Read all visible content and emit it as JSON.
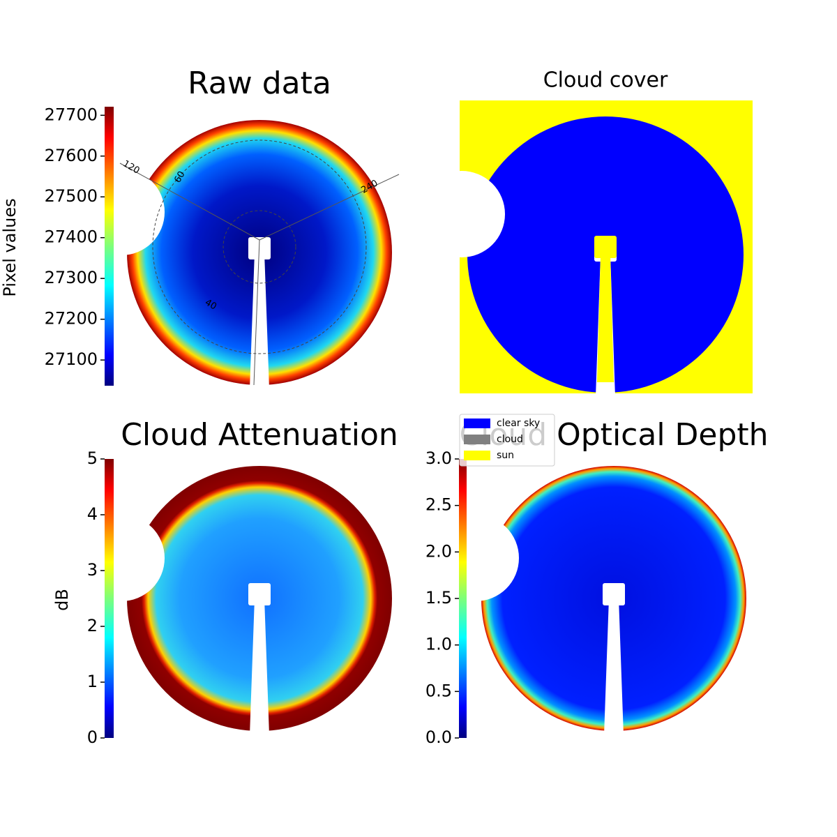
{
  "chart_data": [
    {
      "type": "image",
      "title": "Raw data",
      "colorbar_label": "Pixel values",
      "colormap": "jet",
      "ylim": [
        27037,
        27721
      ],
      "yticks": [
        27100,
        27200,
        27300,
        27400,
        27500,
        27600,
        27700
      ],
      "annotations": [
        "120",
        "60",
        "240",
        "40"
      ]
    },
    {
      "type": "image",
      "title": "Cloud cover",
      "legend": [
        {
          "name": "clear sky",
          "color": "#0000ff"
        },
        {
          "name": "cloud",
          "color": "#808080"
        },
        {
          "name": "sun",
          "color": "#ffff00"
        }
      ]
    },
    {
      "type": "image",
      "title": "Cloud Attenuation",
      "colorbar_label": "dB",
      "colormap": "jet",
      "ylim": [
        0,
        5
      ],
      "yticks": [
        0,
        1,
        2,
        3,
        4,
        5
      ]
    },
    {
      "type": "image",
      "title": "Cloud Optical Depth",
      "colormap": "jet",
      "ylim": [
        0,
        3
      ],
      "yticks": [
        {
          "value": 0,
          "label": "0.0"
        },
        {
          "value": 0.5,
          "label": "0.5"
        },
        {
          "value": 1,
          "label": "1.0"
        },
        {
          "value": 1.5,
          "label": "1.5"
        },
        {
          "value": 2,
          "label": "2.0"
        },
        {
          "value": 2.5,
          "label": "2.5"
        },
        {
          "value": 3,
          "label": "3.0"
        }
      ]
    }
  ]
}
